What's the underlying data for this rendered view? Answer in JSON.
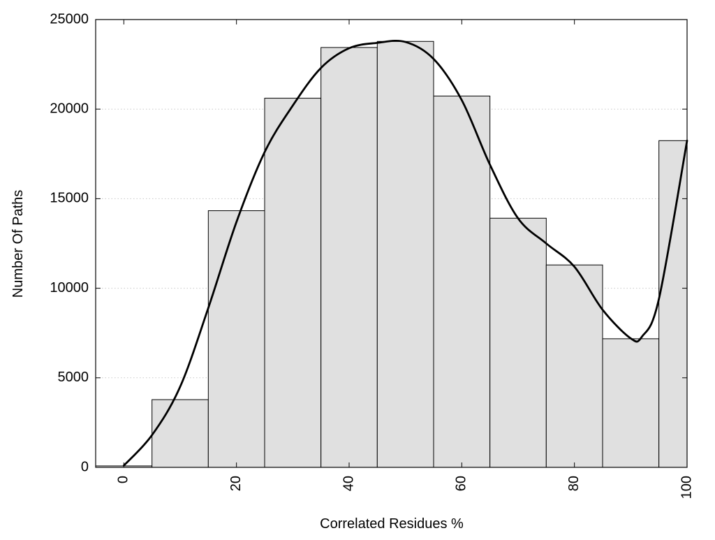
{
  "chart_data": {
    "type": "bar",
    "xlabel": "Correlated Residues %",
    "ylabel": "Number Of Paths",
    "xlim": [
      -5,
      100
    ],
    "ylim": [
      0,
      25000
    ],
    "grid": true,
    "x_ticks": [
      0,
      20,
      40,
      60,
      80,
      100
    ],
    "y_ticks": [
      0,
      5000,
      10000,
      15000,
      20000,
      25000
    ],
    "bin_width": 10,
    "bins": [
      {
        "center": 0,
        "count": 80
      },
      {
        "center": 10,
        "count": 3780
      },
      {
        "center": 20,
        "count": 14330
      },
      {
        "center": 30,
        "count": 20610
      },
      {
        "center": 40,
        "count": 23440
      },
      {
        "center": 50,
        "count": 23780
      },
      {
        "center": 60,
        "count": 20730
      },
      {
        "center": 70,
        "count": 13910
      },
      {
        "center": 80,
        "count": 11300
      },
      {
        "center": 90,
        "count": 7180
      },
      {
        "center": 100,
        "count": 18240
      }
    ],
    "curve": {
      "x": [
        0,
        5,
        10,
        15,
        20,
        25,
        30,
        35,
        40,
        45,
        50,
        55,
        60,
        65,
        70,
        75,
        80,
        85,
        90,
        92,
        95,
        100
      ],
      "y": [
        100,
        1800,
        4500,
        8900,
        13700,
        17600,
        20200,
        22300,
        23400,
        23700,
        23750,
        22800,
        20500,
        16900,
        13900,
        12500,
        11200,
        8800,
        7200,
        7300,
        9400,
        18240
      ]
    },
    "colors": {
      "bar_fill": "#e0e0e0",
      "bar_stroke": "#000000",
      "curve": "#000000",
      "grid": "#c8c8c8"
    }
  }
}
